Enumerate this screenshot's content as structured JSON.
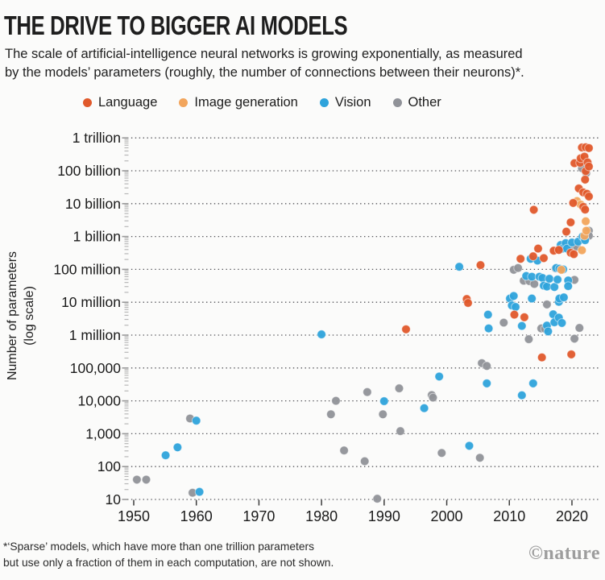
{
  "header": {
    "title": "THE DRIVE TO BIGGER AI MODELS",
    "subtitle_line1": "The scale of artificial-intelligence neural networks is growing exponentially, as measured",
    "subtitle_line2": "by the models’ parameters (roughly, the number of connections between their neurons)*."
  },
  "legend": [
    {
      "label": "Language",
      "color": "#E0592B"
    },
    {
      "label": "Image generation",
      "color": "#F2A55C"
    },
    {
      "label": "Vision",
      "color": "#2EA3DB"
    },
    {
      "label": "Other",
      "color": "#909298"
    }
  ],
  "footnote": {
    "line1": "*‘Sparse’ models, which have more than one trillion parameters",
    "line2": "but use only a fraction of them in each computation, are not shown."
  },
  "watermark": "©nature",
  "chart_data": {
    "type": "scatter",
    "title": "THE DRIVE TO BIGGER AI MODELS",
    "xlabel": "",
    "ylabel_line1": "Number of parameters",
    "ylabel_line2": "(log scale)",
    "x_ticks": [
      1950,
      1960,
      1970,
      1980,
      1990,
      2000,
      2010,
      2020
    ],
    "y_ticks": [
      {
        "label": "1 trillion",
        "value": 1000000000000.0
      },
      {
        "label": "100 billion",
        "value": 100000000000.0
      },
      {
        "label": "10 billion",
        "value": 10000000000.0
      },
      {
        "label": "1 billion",
        "value": 1000000000.0
      },
      {
        "label": "100 million",
        "value": 100000000.0
      },
      {
        "label": "10 million",
        "value": 10000000.0
      },
      {
        "label": "1 million",
        "value": 1000000.0
      },
      {
        "label": "100,000",
        "value": 100000.0
      },
      {
        "label": "10,000",
        "value": 10000.0
      },
      {
        "label": "1,000",
        "value": 1000.0
      },
      {
        "label": "100",
        "value": 100
      },
      {
        "label": "10",
        "value": 10
      }
    ],
    "xlim": [
      1949,
      2024
    ],
    "ylim": [
      10,
      1000000000000.0
    ],
    "y_scale": "log",
    "grid": "dotted-horizontal",
    "legend_position": "top",
    "series": [
      {
        "name": "Language",
        "color": "#E0592B",
        "points": [
          [
            1993.5,
            1500000.0
          ],
          [
            2003.2,
            12500000.0
          ],
          [
            2003.4,
            9500000.0
          ],
          [
            2005.4,
            135000000.0
          ],
          [
            2010.8,
            4200000.0
          ],
          [
            2011.8,
            210000000.0
          ],
          [
            2012.4,
            3500000.0
          ],
          [
            2013.8,
            250000000.0
          ],
          [
            2013.9,
            6500000000.0
          ],
          [
            2014.6,
            430000000.0
          ],
          [
            2015.2,
            210000.0
          ],
          [
            2015.5,
            220000000.0
          ],
          [
            2017.1,
            370000000.0
          ],
          [
            2017.9,
            390000000.0
          ],
          [
            2019.1,
            1400000000.0
          ],
          [
            2019.8,
            320000000.0
          ],
          [
            2019.8,
            2700000000.0
          ],
          [
            2019.9,
            260000.0
          ],
          [
            2020.2,
            10500000000.0
          ],
          [
            2020.3,
            290000000.0
          ],
          [
            2020.4,
            170000000000.0
          ],
          [
            2021.1,
            29000000000.0
          ],
          [
            2021.3,
            175000000000.0
          ],
          [
            2021.4,
            240000000000.0
          ],
          [
            2021.6,
            510000000000.0
          ],
          [
            2021.8,
            8000000000.0
          ],
          [
            2021.8,
            22000000000.0
          ],
          [
            2022.0,
            270000000000.0
          ],
          [
            2022.1,
            54000000000.0
          ],
          [
            2022.1,
            6600000000.0
          ],
          [
            2022.2,
            98000000000.0
          ],
          [
            2022.2,
            520000000000.0
          ],
          [
            2022.4,
            20000000000.0
          ],
          [
            2022.5,
            180000000000.0
          ],
          [
            2022.7,
            490000000000.0
          ],
          [
            2022.7,
            135000000000.0
          ],
          [
            2022.7,
            16500000000.0
          ]
        ]
      },
      {
        "name": "Image generation",
        "color": "#F2A55C",
        "points": [
          [
            2018.3,
            97000000.0
          ],
          [
            2020.8,
            12000000000.0
          ],
          [
            2021.4,
            9400000000.0
          ],
          [
            2021.6,
            380000000.0
          ],
          [
            2022.0,
            1050000000.0
          ],
          [
            2022.2,
            2900000000.0
          ],
          [
            2022.3,
            1500000000.0
          ]
        ]
      },
      {
        "name": "Vision",
        "color": "#2EA3DB",
        "points": [
          [
            1955.1,
            220
          ],
          [
            1957.0,
            385
          ],
          [
            1960.0,
            2500
          ],
          [
            1960.5,
            17
          ],
          [
            1980.0,
            1050000.0
          ],
          [
            1990.0,
            9800
          ],
          [
            1996.4,
            6000
          ],
          [
            1998.8,
            55000.0
          ],
          [
            2002.0,
            120000000.0
          ],
          [
            2003.6,
            430
          ],
          [
            2006.4,
            34000.0
          ],
          [
            2006.6,
            4200000.0
          ],
          [
            2006.7,
            1600000.0
          ],
          [
            2010.1,
            13000000.0
          ],
          [
            2010.4,
            8000000.0
          ],
          [
            2010.7,
            15500000.0
          ],
          [
            2011.0,
            7200000.0
          ],
          [
            2012.0,
            1900000.0
          ],
          [
            2012.0,
            14800.0
          ],
          [
            2012.7,
            63000000.0
          ],
          [
            2013.4,
            210000000.0
          ],
          [
            2013.6,
            60000000.0
          ],
          [
            2013.6,
            13000000.0
          ],
          [
            2013.8,
            34000.0
          ],
          [
            2014.5,
            185000000.0
          ],
          [
            2014.8,
            60000000.0
          ],
          [
            2015.3,
            55000000.0
          ],
          [
            2015.5,
            32000000.0
          ],
          [
            2016.0,
            30000000.0
          ],
          [
            2016.0,
            1950000.0
          ],
          [
            2016.2,
            1300000.0
          ],
          [
            2016.4,
            52000000.0
          ],
          [
            2017.0,
            4300000.0
          ],
          [
            2017.2,
            29000000.0
          ],
          [
            2017.2,
            2450000.0
          ],
          [
            2017.5,
            110000000.0
          ],
          [
            2017.7,
            49000000.0
          ],
          [
            2017.9,
            10300000.0
          ],
          [
            2017.9,
            3400000.0
          ],
          [
            2018.0,
            105000000.0
          ],
          [
            2018.0,
            13000000.0
          ],
          [
            2018.2,
            550000000.0
          ],
          [
            2018.4,
            2350000.0
          ],
          [
            2018.5,
            430000000.0
          ],
          [
            2018.6,
            100000000.0
          ],
          [
            2018.7,
            14000000.0
          ],
          [
            2019.0,
            630000000.0
          ],
          [
            2019.2,
            430000000.0
          ],
          [
            2019.4,
            46000000.0
          ],
          [
            2019.4,
            31000000.0
          ],
          [
            2020.0,
            660000000.0
          ],
          [
            2021.0,
            700000000.0
          ],
          [
            2021.7,
            1000000000.0
          ],
          [
            2022.0,
            890000000.0
          ],
          [
            2022.1,
            770000000.0
          ]
        ]
      },
      {
        "name": "Other",
        "color": "#909298",
        "points": [
          [
            1950.5,
            40
          ],
          [
            1952.0,
            40
          ],
          [
            1959.0,
            2900
          ],
          [
            1959.4,
            16
          ],
          [
            1981.5,
            3900
          ],
          [
            1982.3,
            10000.0
          ],
          [
            1983.6,
            310
          ],
          [
            1986.9,
            145
          ],
          [
            1987.3,
            18500.0
          ],
          [
            1988.9,
            10.5
          ],
          [
            1989.8,
            3900
          ],
          [
            1992.4,
            24000.0
          ],
          [
            1992.6,
            1200
          ],
          [
            1997.6,
            15000.0
          ],
          [
            1997.8,
            12500.0
          ],
          [
            1999.2,
            260
          ],
          [
            2005.3,
            185
          ],
          [
            2005.6,
            140000.0
          ],
          [
            2006.4,
            115000.0
          ],
          [
            2009.1,
            2400000.0
          ],
          [
            2010.7,
            97000000.0
          ],
          [
            2011.4,
            110000000.0
          ],
          [
            2012.3,
            45000000.0
          ],
          [
            2013.1,
            750000.0
          ],
          [
            2013.2,
            44000000.0
          ],
          [
            2014.0,
            36000000.0
          ],
          [
            2015.1,
            1600000.0
          ],
          [
            2015.7,
            1550000.0
          ],
          [
            2016.0,
            8600000.0
          ],
          [
            2017.4,
            107000000.0
          ],
          [
            2020.2,
            460000000.0
          ],
          [
            2020.4,
            48000000.0
          ],
          [
            2020.4,
            780000.0
          ],
          [
            2020.8,
            490000000.0
          ],
          [
            2021.2,
            1650000.0
          ],
          [
            2021.6,
            120000000000.0
          ],
          [
            2022.3,
            85000000000.0
          ],
          [
            2022.5,
            1300000000.0
          ],
          [
            2022.7,
            1500000000.0
          ],
          [
            2022.7,
            1050000000.0
          ]
        ]
      }
    ]
  }
}
